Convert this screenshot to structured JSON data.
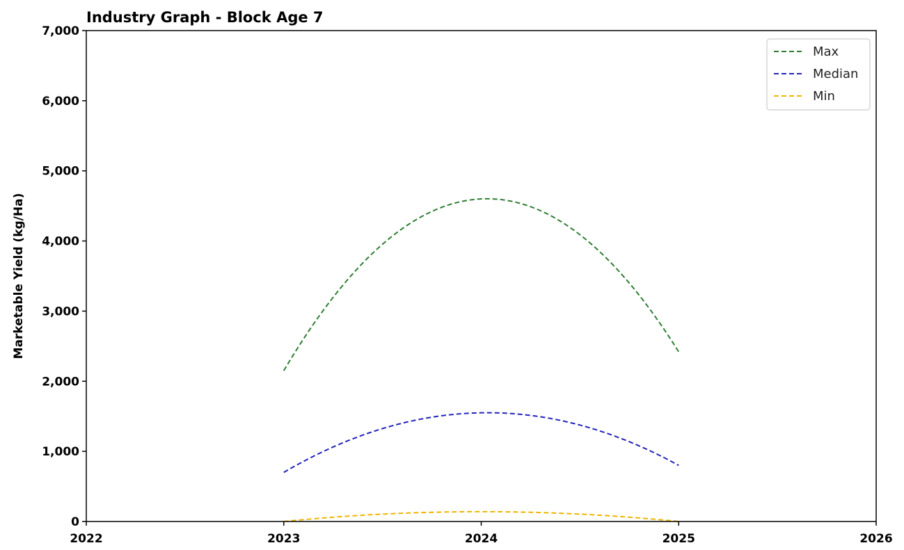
{
  "chart_data": {
    "type": "line",
    "title": "Industry Graph - Block Age 7",
    "xlabel": "",
    "ylabel": "Marketable Yield (kg/Ha)",
    "xlim": [
      2022,
      2026
    ],
    "ylim": [
      0,
      7000
    ],
    "x_ticks": [
      2022,
      2023,
      2024,
      2025,
      2026
    ],
    "x_tick_labels": [
      "2022",
      "2023",
      "2024",
      "2025",
      "2026"
    ],
    "y_ticks": [
      0,
      1000,
      2000,
      3000,
      4000,
      5000,
      6000,
      7000
    ],
    "y_tick_labels": [
      "0",
      "1,000",
      "2,000",
      "3,000",
      "4,000",
      "5,000",
      "6,000",
      "7,000"
    ],
    "grid": false,
    "legend_position": "top-right",
    "x": [
      2023,
      2024,
      2025
    ],
    "series": [
      {
        "name": "Max",
        "color": "#2e7d32",
        "line_style": "dashed",
        "values": [
          2150,
          4600,
          2420
        ]
      },
      {
        "name": "Median",
        "color": "#2222bb",
        "line_style": "dashed",
        "values": [
          700,
          1550,
          800
        ]
      },
      {
        "name": "Min",
        "color": "#f0b400",
        "line_style": "dashed",
        "values": [
          0,
          140,
          0
        ]
      }
    ]
  }
}
